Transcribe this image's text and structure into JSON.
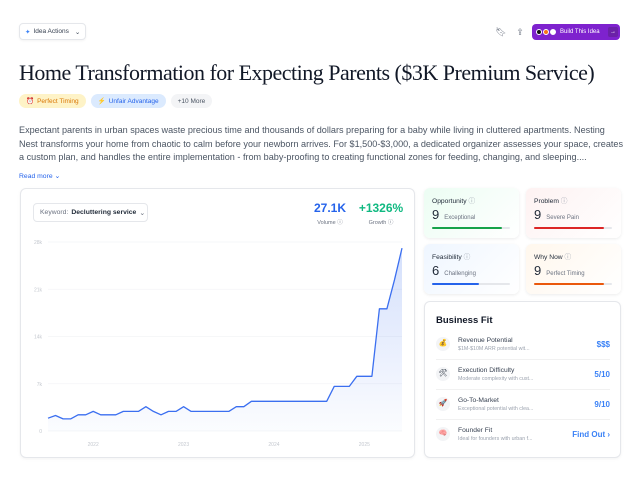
{
  "toolbar": {
    "idea_actions": "Idea Actions",
    "build_label": "Build This Idea"
  },
  "title": "Home Transformation for Expecting Parents ($3K Premium Service)",
  "tags": [
    {
      "label": "Perfect Timing",
      "icon": "alarm-clock-icon",
      "bg": "#fef3c7",
      "color": "#d97706"
    },
    {
      "label": "Unfair Advantage",
      "icon": "lightning-icon",
      "bg": "#dbeafe",
      "color": "#2563eb"
    },
    {
      "label": "+10 More"
    }
  ],
  "description": "Expectant parents in urban spaces waste precious time and thousands of dollars preparing for a baby while living in cluttered apartments. Nesting Nest transforms your home from chaotic to calm before your newborn arrives. For $1,500-$3,000, a dedicated organizer assesses your space, creates a custom plan, and handles the entire implementation - from baby-proofing to creating functional zones for feeding, changing, and sleeping....",
  "read_more": "Read more",
  "keyword": {
    "label": "Keyword:",
    "value": "Decluttering service"
  },
  "stats": {
    "volume": "27.1K",
    "volume_label": "Volume",
    "growth": "+1326%",
    "growth_label": "Growth"
  },
  "chart_data": {
    "type": "area",
    "x": [
      "2021-07",
      "2021-08",
      "2021-09",
      "2021-10",
      "2021-11",
      "2021-12",
      "2022-01",
      "2022-02",
      "2022-03",
      "2022-04",
      "2022-05",
      "2022-06",
      "2022-07",
      "2022-08",
      "2022-09",
      "2022-10",
      "2022-11",
      "2022-12",
      "2023-01",
      "2023-02",
      "2023-03",
      "2023-04",
      "2023-05",
      "2023-06",
      "2023-07",
      "2023-08",
      "2023-09",
      "2023-10",
      "2023-11",
      "2023-12",
      "2024-01",
      "2024-02",
      "2024-03",
      "2024-04",
      "2024-05",
      "2024-06",
      "2024-07",
      "2024-08",
      "2024-09",
      "2024-10",
      "2024-11",
      "2024-12",
      "2025-01",
      "2025-02",
      "2025-03",
      "2025-04",
      "2025-05",
      "2025-06"
    ],
    "values": [
      1900,
      2300,
      1800,
      1800,
      2400,
      2400,
      2900,
      2400,
      2400,
      2400,
      2900,
      2900,
      2900,
      3600,
      2900,
      2400,
      2900,
      2900,
      3600,
      2900,
      2900,
      2900,
      2900,
      2900,
      2900,
      3600,
      3600,
      4400,
      4400,
      4400,
      4400,
      4400,
      4400,
      4400,
      4400,
      4400,
      4400,
      4400,
      6600,
      6600,
      6600,
      8100,
      8100,
      8100,
      18100,
      18100,
      22400,
      27100
    ],
    "yticks": [
      "0",
      "7k",
      "14k",
      "21k",
      "28k"
    ],
    "ylim": [
      0,
      28000
    ],
    "xticks": [
      "2022",
      "2023",
      "2024",
      "2025"
    ],
    "grid": true,
    "color": "#3b6ff0"
  },
  "scores": [
    {
      "title": "Opportunity",
      "score": "9",
      "label": "Exceptional",
      "fraction": 0.9,
      "color": "#16a34a",
      "bg": "#ecfdf3"
    },
    {
      "title": "Problem",
      "score": "9",
      "label": "Severe Pain",
      "fraction": 0.9,
      "color": "#dc2626",
      "bg": "#fef2f2"
    },
    {
      "title": "Feasibility",
      "score": "6",
      "label": "Challenging",
      "fraction": 0.6,
      "color": "#2563eb",
      "bg": "#eff6ff"
    },
    {
      "title": "Why Now",
      "score": "9",
      "label": "Perfect Timing",
      "fraction": 0.9,
      "color": "#ea580c",
      "bg": "#fff7ed"
    }
  ],
  "business_fit": {
    "title": "Business Fit",
    "rows": [
      {
        "icon": "money-bag-icon",
        "glyph": "💰",
        "title": "Revenue Potential",
        "desc": "$1M-$10M ARR potential wit...",
        "value": "$$$"
      },
      {
        "icon": "tools-icon",
        "glyph": "🛠",
        "title": "Execution Difficulty",
        "desc": "Moderate complexity with cust...",
        "value": "5/10"
      },
      {
        "icon": "rocket-icon",
        "glyph": "🚀",
        "title": "Go-To-Market",
        "desc": "Exceptional potential with clea...",
        "value": "9/10"
      },
      {
        "icon": "brain-icon",
        "glyph": "🧠",
        "title": "Founder Fit",
        "desc": "Ideal for founders with urban f...",
        "value": "Find Out ›"
      }
    ]
  }
}
